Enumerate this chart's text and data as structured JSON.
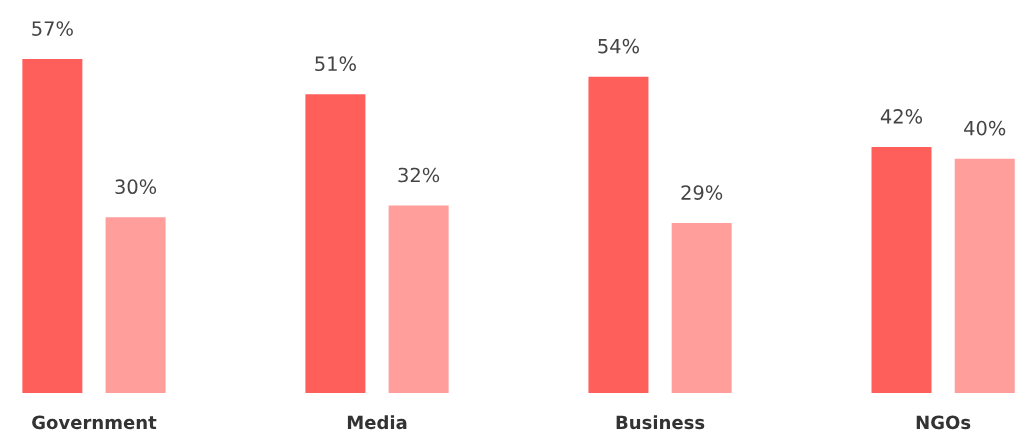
{
  "chart_data": {
    "type": "bar",
    "categories": [
      "Government",
      "Media",
      "Business",
      "NGOs"
    ],
    "series": [
      {
        "color": "#ff5f5b",
        "values": [
          57,
          51,
          54,
          42
        ],
        "value_labels": [
          "57%",
          "51%",
          "54%",
          "42%"
        ]
      },
      {
        "color": "#ff9e9a",
        "values": [
          30,
          32,
          29,
          40
        ],
        "value_labels": [
          "30%",
          "32%",
          "29%",
          "40%"
        ]
      }
    ],
    "grid": false
  }
}
